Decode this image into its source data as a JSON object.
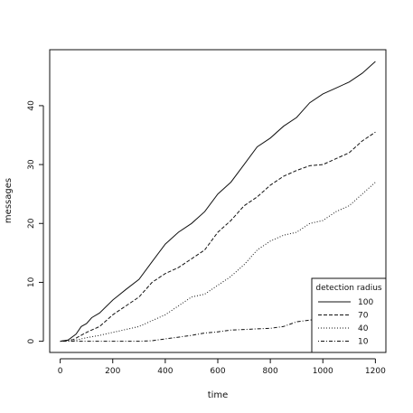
{
  "chart_data": {
    "type": "line",
    "title": "",
    "xlabel": "time",
    "ylabel": "messages",
    "xlim": [
      -40,
      1240
    ],
    "ylim": [
      -1.9,
      49.5
    ],
    "xticks": [
      0,
      200,
      400,
      600,
      800,
      1000,
      1200
    ],
    "yticks": [
      0,
      10,
      20,
      30,
      40
    ],
    "grid": false,
    "legend": {
      "title": "detection radius",
      "position": "bottom-right"
    },
    "series": [
      {
        "name": "100",
        "style": "solid",
        "points": [
          [
            0,
            0
          ],
          [
            30,
            0.2
          ],
          [
            60,
            1.2
          ],
          [
            80,
            2.5
          ],
          [
            100,
            3.0
          ],
          [
            120,
            4.0
          ],
          [
            150,
            4.8
          ],
          [
            200,
            7.0
          ],
          [
            250,
            8.8
          ],
          [
            300,
            10.5
          ],
          [
            350,
            13.5
          ],
          [
            400,
            16.5
          ],
          [
            450,
            18.5
          ],
          [
            500,
            20.0
          ],
          [
            550,
            22.0
          ],
          [
            600,
            25.0
          ],
          [
            650,
            27.0
          ],
          [
            700,
            30.0
          ],
          [
            750,
            33.0
          ],
          [
            800,
            34.5
          ],
          [
            850,
            36.5
          ],
          [
            900,
            38.0
          ],
          [
            950,
            40.5
          ],
          [
            1000,
            42.0
          ],
          [
            1050,
            43.0
          ],
          [
            1100,
            44.0
          ],
          [
            1150,
            45.5
          ],
          [
            1200,
            47.5
          ]
        ]
      },
      {
        "name": "70",
        "style": "dashed",
        "points": [
          [
            0,
            0
          ],
          [
            50,
            0.3
          ],
          [
            100,
            1.5
          ],
          [
            150,
            2.5
          ],
          [
            200,
            4.5
          ],
          [
            250,
            6.0
          ],
          [
            300,
            7.5
          ],
          [
            350,
            10.0
          ],
          [
            400,
            11.5
          ],
          [
            450,
            12.5
          ],
          [
            500,
            14.0
          ],
          [
            550,
            15.5
          ],
          [
            600,
            18.5
          ],
          [
            650,
            20.5
          ],
          [
            700,
            23.0
          ],
          [
            750,
            24.5
          ],
          [
            800,
            26.5
          ],
          [
            850,
            28.0
          ],
          [
            900,
            29.0
          ],
          [
            950,
            29.8
          ],
          [
            1000,
            30.0
          ],
          [
            1050,
            31.0
          ],
          [
            1100,
            32.0
          ],
          [
            1150,
            34.0
          ],
          [
            1200,
            35.5
          ]
        ]
      },
      {
        "name": "40",
        "style": "dotted",
        "points": [
          [
            0,
            0
          ],
          [
            50,
            0.1
          ],
          [
            100,
            0.6
          ],
          [
            150,
            1.0
          ],
          [
            200,
            1.5
          ],
          [
            250,
            2.0
          ],
          [
            300,
            2.5
          ],
          [
            350,
            3.5
          ],
          [
            400,
            4.5
          ],
          [
            450,
            6.0
          ],
          [
            500,
            7.5
          ],
          [
            550,
            8.0
          ],
          [
            600,
            9.5
          ],
          [
            650,
            11.0
          ],
          [
            700,
            13.0
          ],
          [
            750,
            15.5
          ],
          [
            800,
            17.0
          ],
          [
            850,
            18.0
          ],
          [
            900,
            18.5
          ],
          [
            950,
            20.0
          ],
          [
            1000,
            20.5
          ],
          [
            1050,
            22.0
          ],
          [
            1100,
            23.0
          ],
          [
            1150,
            25.0
          ],
          [
            1200,
            27.0
          ]
        ]
      },
      {
        "name": "10",
        "style": "dotdash",
        "points": [
          [
            0,
            0
          ],
          [
            100,
            0
          ],
          [
            200,
            0
          ],
          [
            300,
            0
          ],
          [
            350,
            0.1
          ],
          [
            400,
            0.4
          ],
          [
            450,
            0.7
          ],
          [
            500,
            1.0
          ],
          [
            550,
            1.4
          ],
          [
            600,
            1.6
          ],
          [
            650,
            1.9
          ],
          [
            700,
            2.0
          ],
          [
            750,
            2.1
          ],
          [
            800,
            2.2
          ],
          [
            850,
            2.5
          ],
          [
            900,
            3.3
          ],
          [
            950,
            3.6
          ],
          [
            1000,
            3.9
          ],
          [
            1050,
            4.0
          ],
          [
            1100,
            4.2
          ],
          [
            1150,
            4.7
          ],
          [
            1200,
            5.0
          ]
        ]
      }
    ]
  }
}
